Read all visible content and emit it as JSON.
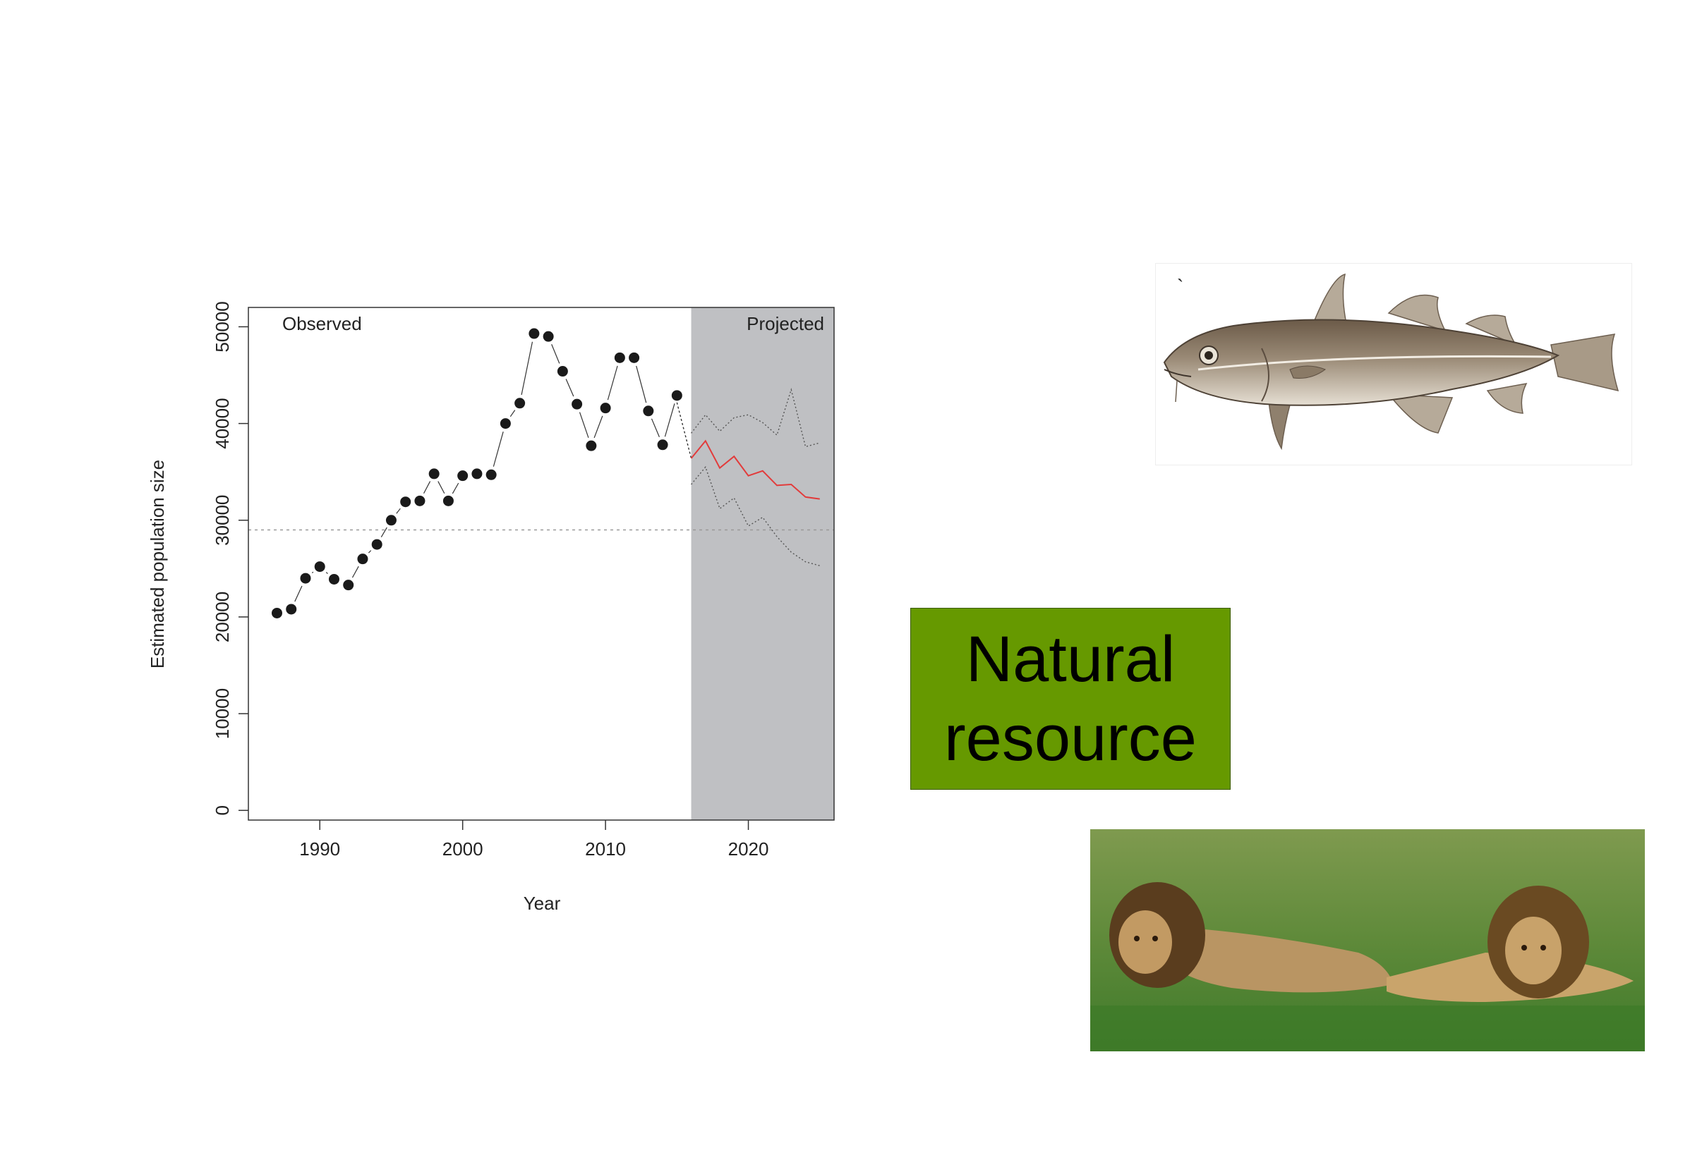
{
  "slide": {
    "text_box": "Natural\nresource",
    "text_box_color": "#669900"
  },
  "images": {
    "fish": "cod-fish-illustration",
    "lions": "two-lions-resting-in-grass-photo"
  },
  "chart_data": {
    "type": "line",
    "xlabel": "Year",
    "ylabel": "Estimated population size",
    "xlim": [
      1985,
      2026
    ],
    "ylim": [
      -1000,
      52000
    ],
    "x_ticks": [
      1990,
      2000,
      2010,
      2020
    ],
    "y_ticks": [
      0,
      10000,
      20000,
      30000,
      40000,
      50000
    ],
    "regions": [
      {
        "label": "Observed",
        "x_range": [
          1985,
          2016
        ]
      },
      {
        "label": "Projected",
        "x_range": [
          2016,
          2026
        ],
        "shade": "#bfc0c3"
      }
    ],
    "reference_line_y": 29000,
    "series": [
      {
        "role": "observed",
        "style": "points",
        "x": [
          1987,
          1988,
          1989,
          1990,
          1991,
          1992,
          1993,
          1994,
          1995,
          1996,
          1997,
          1998,
          1999,
          2000,
          2001,
          2002,
          2003,
          2004,
          2005,
          2006,
          2007,
          2008,
          2009,
          2010,
          2011,
          2012,
          2013,
          2014,
          2015
        ],
        "values": [
          20400,
          20800,
          24000,
          25200,
          23900,
          23300,
          26000,
          27500,
          30000,
          31900,
          32000,
          34800,
          32000,
          34600,
          34800,
          34700,
          40000,
          42100,
          49300,
          49000,
          45400,
          42000,
          37700,
          41600,
          46800,
          46800,
          41300,
          37800,
          42900
        ]
      },
      {
        "role": "projection",
        "style": "line",
        "color": "#e23b3b",
        "x": [
          2016,
          2017,
          2018,
          2019,
          2020,
          2021,
          2022,
          2023,
          2024,
          2025
        ],
        "values": [
          36400,
          38200,
          35400,
          36600,
          34600,
          35100,
          33600,
          33700,
          32400,
          32200
        ]
      },
      {
        "role": "upper",
        "style": "dotted",
        "x": [
          2016,
          2017,
          2018,
          2019,
          2020,
          2021,
          2022,
          2023,
          2024,
          2025
        ],
        "values": [
          39000,
          40900,
          39200,
          40600,
          40900,
          40100,
          38800,
          43500,
          37600,
          38000
        ]
      },
      {
        "role": "lower",
        "style": "dotted",
        "x": [
          2016,
          2017,
          2018,
          2019,
          2020,
          2021,
          2022,
          2023,
          2024,
          2025
        ],
        "values": [
          33700,
          35500,
          31200,
          32300,
          29400,
          30300,
          28300,
          26700,
          25700,
          25300
        ]
      }
    ]
  }
}
